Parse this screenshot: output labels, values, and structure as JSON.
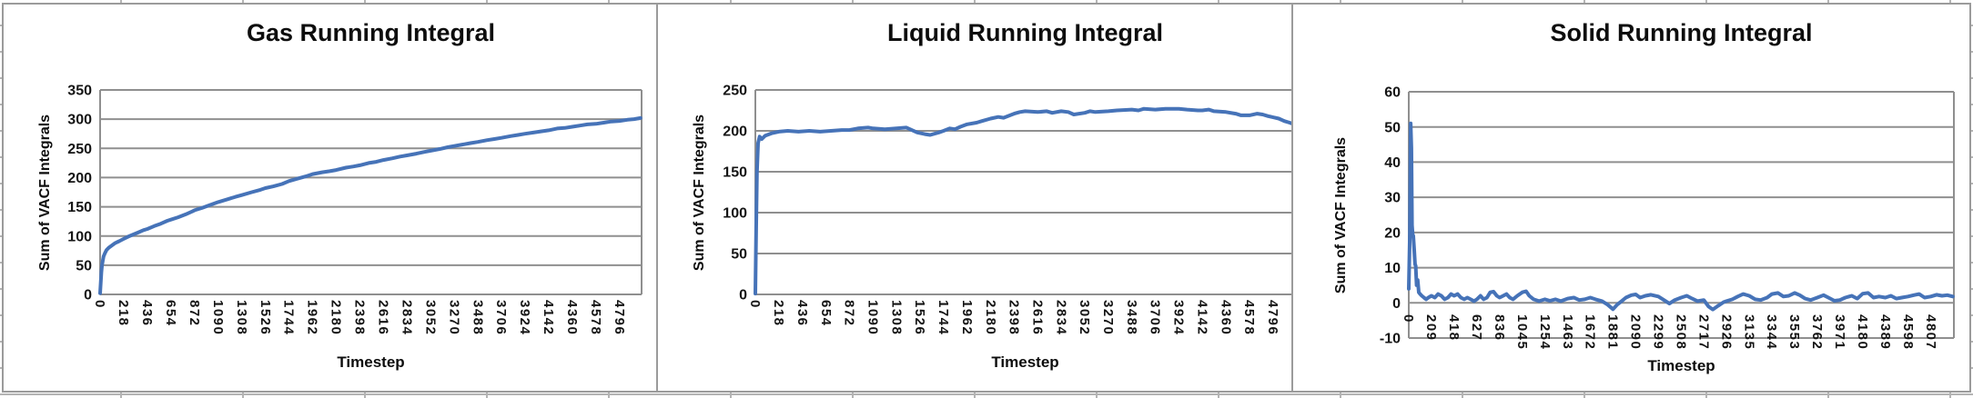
{
  "sheet": {
    "background_color": "#ffffff",
    "cell_gridline_color": "#b4b4b4",
    "chart_border_color": "#9b9b9b",
    "plot_gridline_color": "#8f8f8f",
    "series_color": "#4673b8"
  },
  "chart_data": [
    {
      "type": "line",
      "title": "Gas Running Integral",
      "xlabel": "Timestep",
      "ylabel": "Sum of VACF Integrals",
      "ylim": [
        0,
        350
      ],
      "yticks": [
        0,
        50,
        100,
        150,
        200,
        250,
        300,
        350
      ],
      "xlim": [
        0,
        5000
      ],
      "xtick_interval": 218,
      "xticks": [
        0,
        218,
        436,
        654,
        872,
        1090,
        1308,
        1526,
        1744,
        1962,
        2180,
        2398,
        2616,
        2834,
        3052,
        3270,
        3488,
        3706,
        3924,
        4142,
        4360,
        4578,
        4796
      ],
      "grid": "horizontal",
      "legend": "none",
      "points": [
        [
          0,
          2
        ],
        [
          6,
          20
        ],
        [
          12,
          38
        ],
        [
          18,
          50
        ],
        [
          25,
          58
        ],
        [
          32,
          65
        ],
        [
          45,
          71
        ],
        [
          60,
          76
        ],
        [
          80,
          80
        ],
        [
          110,
          84
        ],
        [
          140,
          88
        ],
        [
          175,
          91
        ],
        [
          218,
          95
        ],
        [
          260,
          99
        ],
        [
          300,
          102
        ],
        [
          350,
          106
        ],
        [
          400,
          110
        ],
        [
          436,
          112
        ],
        [
          500,
          117
        ],
        [
          560,
          121
        ],
        [
          620,
          126
        ],
        [
          654,
          128
        ],
        [
          720,
          132
        ],
        [
          790,
          137
        ],
        [
          850,
          142
        ],
        [
          872,
          144
        ],
        [
          940,
          148
        ],
        [
          1000,
          152
        ],
        [
          1090,
          158
        ],
        [
          1180,
          163
        ],
        [
          1250,
          167
        ],
        [
          1308,
          170
        ],
        [
          1400,
          175
        ],
        [
          1480,
          179
        ],
        [
          1526,
          182
        ],
        [
          1600,
          185
        ],
        [
          1680,
          189
        ],
        [
          1744,
          194
        ],
        [
          1820,
          198
        ],
        [
          1900,
          202
        ],
        [
          1962,
          206
        ],
        [
          2050,
          209
        ],
        [
          2120,
          211
        ],
        [
          2180,
          213
        ],
        [
          2270,
          217
        ],
        [
          2340,
          219
        ],
        [
          2398,
          221
        ],
        [
          2480,
          225
        ],
        [
          2550,
          227
        ],
        [
          2616,
          230
        ],
        [
          2700,
          233
        ],
        [
          2770,
          236
        ],
        [
          2834,
          238
        ],
        [
          2920,
          241
        ],
        [
          3000,
          244
        ],
        [
          3052,
          246
        ],
        [
          3140,
          249
        ],
        [
          3210,
          252
        ],
        [
          3270,
          254
        ],
        [
          3360,
          257
        ],
        [
          3420,
          259
        ],
        [
          3488,
          261
        ],
        [
          3570,
          264
        ],
        [
          3640,
          266
        ],
        [
          3706,
          268
        ],
        [
          3790,
          271
        ],
        [
          3860,
          273
        ],
        [
          3924,
          275
        ],
        [
          4000,
          277
        ],
        [
          4070,
          279
        ],
        [
          4142,
          281
        ],
        [
          4220,
          284
        ],
        [
          4290,
          285
        ],
        [
          4360,
          287
        ],
        [
          4430,
          289
        ],
        [
          4500,
          291
        ],
        [
          4578,
          292
        ],
        [
          4650,
          294
        ],
        [
          4720,
          296
        ],
        [
          4796,
          297
        ],
        [
          4870,
          299
        ],
        [
          4930,
          300
        ],
        [
          4990,
          302
        ]
      ]
    },
    {
      "type": "line",
      "title": "Liquid Running Integral",
      "xlabel": "Timestep",
      "ylabel": "Sum of VACF Integrals",
      "ylim": [
        0,
        250
      ],
      "yticks": [
        0,
        50,
        100,
        150,
        200,
        250
      ],
      "xlim": [
        0,
        5000
      ],
      "xtick_interval": 218,
      "xticks": [
        0,
        218,
        436,
        654,
        872,
        1090,
        1308,
        1526,
        1744,
        1962,
        2180,
        2398,
        2616,
        2834,
        3052,
        3270,
        3488,
        3706,
        3924,
        4142,
        4360,
        4578,
        4796
      ],
      "grid": "horizontal",
      "legend": "none",
      "points": [
        [
          0,
          1
        ],
        [
          8,
          80
        ],
        [
          15,
          150
        ],
        [
          25,
          185
        ],
        [
          40,
          193
        ],
        [
          60,
          190
        ],
        [
          90,
          194
        ],
        [
          150,
          197
        ],
        [
          218,
          199
        ],
        [
          300,
          200
        ],
        [
          400,
          199
        ],
        [
          500,
          200
        ],
        [
          600,
          199
        ],
        [
          700,
          200
        ],
        [
          800,
          201
        ],
        [
          872,
          201
        ],
        [
          950,
          203
        ],
        [
          1045,
          204
        ],
        [
          1090,
          203
        ],
        [
          1200,
          202
        ],
        [
          1308,
          203
        ],
        [
          1400,
          204
        ],
        [
          1500,
          198
        ],
        [
          1570,
          196
        ],
        [
          1620,
          195
        ],
        [
          1700,
          198
        ],
        [
          1744,
          200
        ],
        [
          1800,
          203
        ],
        [
          1850,
          202
        ],
        [
          1900,
          205
        ],
        [
          1962,
          208
        ],
        [
          2050,
          210
        ],
        [
          2100,
          212
        ],
        [
          2180,
          215
        ],
        [
          2250,
          217
        ],
        [
          2300,
          216
        ],
        [
          2398,
          221
        ],
        [
          2450,
          223
        ],
        [
          2500,
          224
        ],
        [
          2616,
          223
        ],
        [
          2700,
          224
        ],
        [
          2750,
          222
        ],
        [
          2834,
          224
        ],
        [
          2900,
          223
        ],
        [
          2950,
          220
        ],
        [
          3052,
          222
        ],
        [
          3100,
          224
        ],
        [
          3150,
          223
        ],
        [
          3270,
          224
        ],
        [
          3350,
          225
        ],
        [
          3488,
          226
        ],
        [
          3550,
          225
        ],
        [
          3600,
          227
        ],
        [
          3706,
          226
        ],
        [
          3800,
          227
        ],
        [
          3924,
          227
        ],
        [
          4000,
          226
        ],
        [
          4100,
          225
        ],
        [
          4142,
          225
        ],
        [
          4200,
          226
        ],
        [
          4250,
          224
        ],
        [
          4360,
          223
        ],
        [
          4450,
          221
        ],
        [
          4500,
          219
        ],
        [
          4578,
          219
        ],
        [
          4650,
          221
        ],
        [
          4700,
          220
        ],
        [
          4750,
          218
        ],
        [
          4850,
          215
        ],
        [
          4900,
          212
        ],
        [
          4950,
          210
        ],
        [
          4990,
          208
        ]
      ]
    },
    {
      "type": "line",
      "title": "Solid Running Integral",
      "xlabel": "Timestep",
      "ylabel": "Sum of VACF Integrals",
      "ylim": [
        -10,
        60
      ],
      "yticks": [
        -10,
        0,
        10,
        20,
        30,
        40,
        50,
        60
      ],
      "xlim": [
        0,
        5020
      ],
      "xtick_interval": 209,
      "xticks": [
        0,
        209,
        418,
        627,
        836,
        1045,
        1254,
        1463,
        1672,
        1881,
        2090,
        2299,
        2508,
        2717,
        2926,
        3135,
        3344,
        3553,
        3762,
        3971,
        4180,
        4389,
        4598,
        4807
      ],
      "grid": "horizontal",
      "legend": "none",
      "points": [
        [
          0,
          4
        ],
        [
          10,
          20
        ],
        [
          18,
          51
        ],
        [
          24,
          44
        ],
        [
          30,
          22
        ],
        [
          36,
          19.5
        ],
        [
          42,
          19
        ],
        [
          50,
          15
        ],
        [
          58,
          11
        ],
        [
          64,
          10.5
        ],
        [
          72,
          5
        ],
        [
          82,
          6.5
        ],
        [
          92,
          3
        ],
        [
          105,
          2.5
        ],
        [
          120,
          2
        ],
        [
          140,
          1.5
        ],
        [
          160,
          1
        ],
        [
          180,
          1.5
        ],
        [
          209,
          2
        ],
        [
          240,
          1.5
        ],
        [
          270,
          2.5
        ],
        [
          300,
          2
        ],
        [
          330,
          1
        ],
        [
          360,
          1.5
        ],
        [
          390,
          2.5
        ],
        [
          418,
          2
        ],
        [
          450,
          2.5
        ],
        [
          480,
          1.5
        ],
        [
          510,
          1
        ],
        [
          540,
          1.5
        ],
        [
          570,
          1
        ],
        [
          600,
          0.5
        ],
        [
          627,
          1
        ],
        [
          660,
          2
        ],
        [
          690,
          1
        ],
        [
          720,
          1.5
        ],
        [
          750,
          3
        ],
        [
          780,
          3.2
        ],
        [
          810,
          2
        ],
        [
          836,
          1.5
        ],
        [
          870,
          2
        ],
        [
          900,
          2.5
        ],
        [
          930,
          1.5
        ],
        [
          960,
          1
        ],
        [
          1000,
          2
        ],
        [
          1045,
          3
        ],
        [
          1080,
          3.3
        ],
        [
          1110,
          2
        ],
        [
          1150,
          1
        ],
        [
          1200,
          0.5
        ],
        [
          1254,
          1
        ],
        [
          1300,
          0.6
        ],
        [
          1350,
          1
        ],
        [
          1400,
          0.5
        ],
        [
          1463,
          1.2
        ],
        [
          1520,
          1.5
        ],
        [
          1570,
          0.8
        ],
        [
          1620,
          1
        ],
        [
          1672,
          1.5
        ],
        [
          1720,
          1
        ],
        [
          1780,
          0.5
        ],
        [
          1830,
          -0.5
        ],
        [
          1881,
          -1.8
        ],
        [
          1920,
          -0.5
        ],
        [
          1960,
          0.5
        ],
        [
          2000,
          1.5
        ],
        [
          2050,
          2.2
        ],
        [
          2090,
          2.4
        ],
        [
          2130,
          1.5
        ],
        [
          2180,
          2
        ],
        [
          2230,
          2.3
        ],
        [
          2299,
          1.8
        ],
        [
          2350,
          0.8
        ],
        [
          2400,
          -0.2
        ],
        [
          2450,
          0.8
        ],
        [
          2508,
          1.5
        ],
        [
          2560,
          2
        ],
        [
          2610,
          1.2
        ],
        [
          2660,
          0.5
        ],
        [
          2717,
          0.8
        ],
        [
          2760,
          -1
        ],
        [
          2800,
          -1.9
        ],
        [
          2850,
          -0.8
        ],
        [
          2900,
          0.2
        ],
        [
          2926,
          0.5
        ],
        [
          2980,
          1
        ],
        [
          3030,
          1.8
        ],
        [
          3080,
          2.5
        ],
        [
          3135,
          2
        ],
        [
          3190,
          1
        ],
        [
          3240,
          0.8
        ],
        [
          3300,
          1.5
        ],
        [
          3344,
          2.5
        ],
        [
          3400,
          2.8
        ],
        [
          3450,
          1.8
        ],
        [
          3500,
          2
        ],
        [
          3553,
          2.8
        ],
        [
          3600,
          2.2
        ],
        [
          3650,
          1.2
        ],
        [
          3700,
          0.8
        ],
        [
          3762,
          1.5
        ],
        [
          3820,
          2.2
        ],
        [
          3870,
          1.4
        ],
        [
          3920,
          0.6
        ],
        [
          3971,
          0.8
        ],
        [
          4020,
          1.5
        ],
        [
          4080,
          2
        ],
        [
          4130,
          1.2
        ],
        [
          4180,
          2.6
        ],
        [
          4230,
          2.8
        ],
        [
          4280,
          1.5
        ],
        [
          4330,
          1.8
        ],
        [
          4389,
          1.5
        ],
        [
          4440,
          2
        ],
        [
          4490,
          1.2
        ],
        [
          4540,
          1.5
        ],
        [
          4598,
          1.8
        ],
        [
          4650,
          2.2
        ],
        [
          4700,
          2.5
        ],
        [
          4750,
          1.5
        ],
        [
          4807,
          1.8
        ],
        [
          4860,
          2.3
        ],
        [
          4910,
          2
        ],
        [
          4960,
          2.2
        ],
        [
          5010,
          1.8
        ]
      ]
    }
  ]
}
